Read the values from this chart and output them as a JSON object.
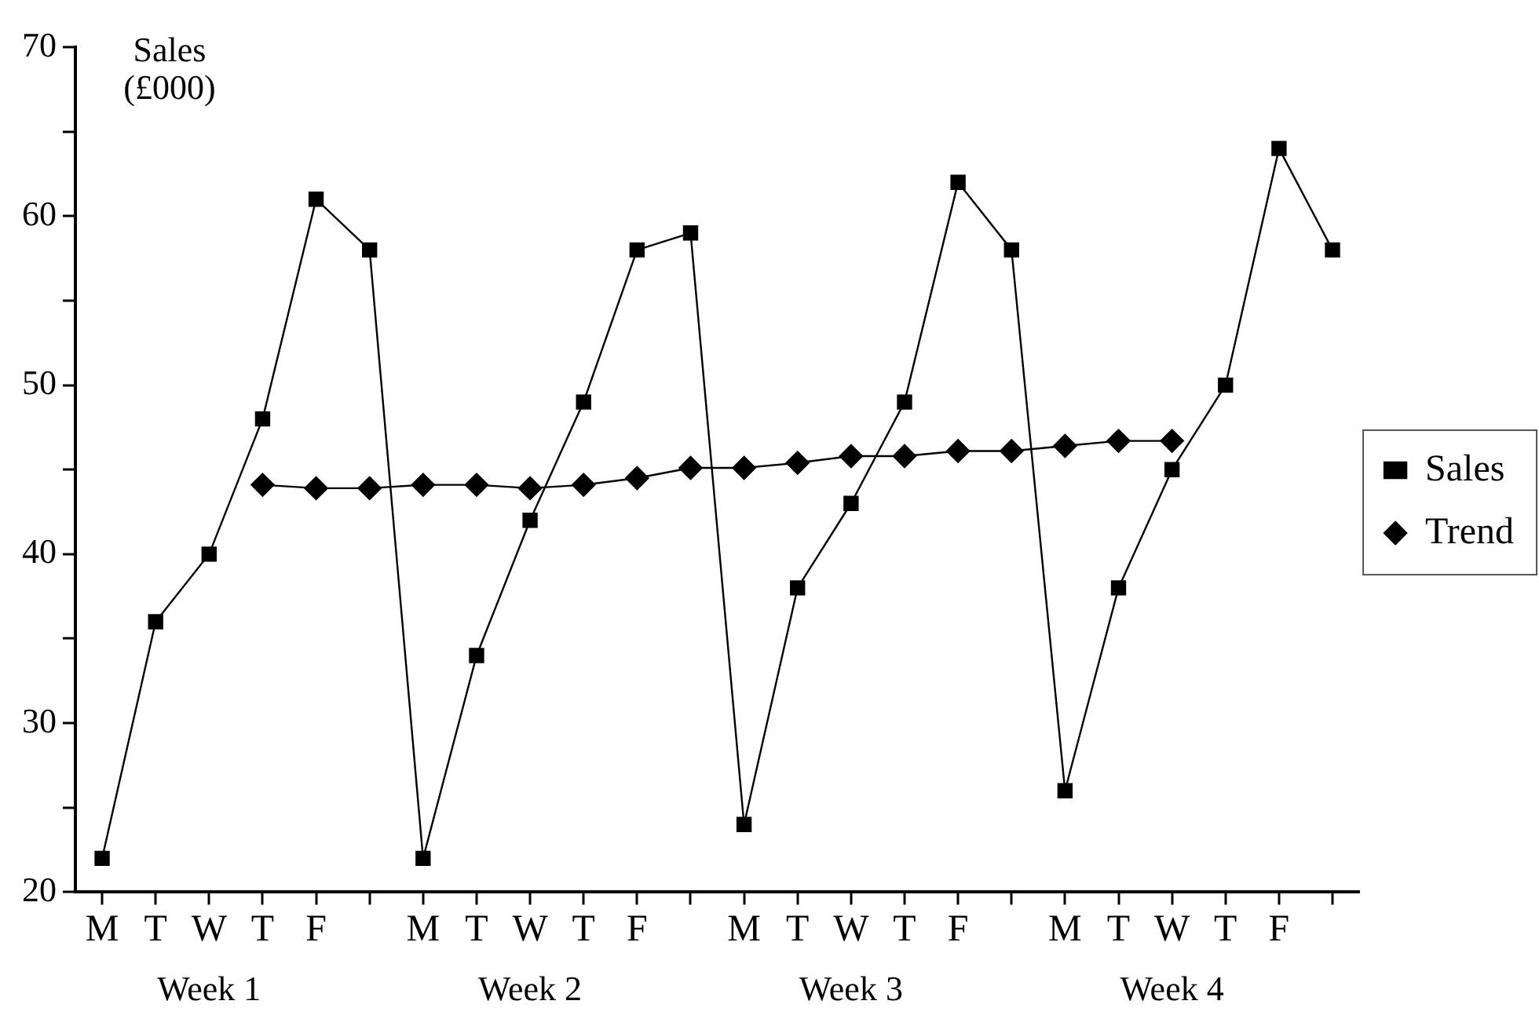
{
  "chart_data": {
    "type": "line",
    "ylabel": "Sales (£000)",
    "categories": [
      "M",
      "T",
      "W",
      "T",
      "F",
      null,
      "M",
      "T",
      "W",
      "T",
      "F",
      null,
      "M",
      "T",
      "W",
      "T",
      "F",
      null,
      "M",
      "T",
      "W",
      "T",
      "F",
      null
    ],
    "series": [
      {
        "name": "Sales",
        "color": "#000000",
        "marker": "square",
        "values": [
          22,
          36,
          40,
          48,
          61,
          58,
          22,
          34,
          42,
          49,
          58,
          59,
          24,
          38,
          43,
          49,
          62,
          58,
          26,
          38,
          45,
          50,
          64,
          58
        ]
      },
      {
        "name": "Trend",
        "color": "#000000",
        "marker": "diamond",
        "values": [
          null,
          null,
          null,
          44.1,
          43.9,
          43.9,
          44.1,
          44.1,
          43.9,
          44.1,
          44.5,
          45.1,
          45.1,
          45.4,
          45.8,
          45.8,
          46.1,
          46.1,
          46.4,
          46.7,
          46.7,
          null,
          null,
          null
        ]
      }
    ],
    "ylim": [
      20,
      70
    ],
    "yticks": [
      20,
      {
        "value": 25,
        "label": null
      },
      30,
      {
        "value": 35,
        "label": null
      },
      40,
      {
        "value": 45,
        "label": null
      },
      50,
      {
        "value": 55,
        "label": null
      },
      60,
      {
        "value": 65,
        "label": null
      },
      70
    ],
    "annotations": [
      "Week 1",
      "Week 2",
      "Week 3",
      "Week 4"
    ],
    "grid": false,
    "legend": "right",
    "line_style": "solid"
  }
}
